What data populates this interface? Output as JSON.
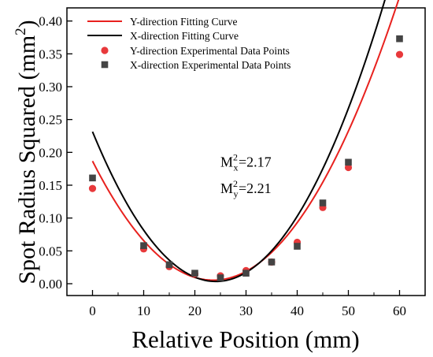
{
  "chart_data": {
    "type": "scatter",
    "xlabel": "Relative Position (mm)",
    "ylabel": {
      "main": "Spot Radius Squared (mm",
      "sup": "2",
      "close": ")"
    },
    "xlim": [
      -5,
      65
    ],
    "ylim": [
      -0.018,
      0.42
    ],
    "xticks": [
      0,
      10,
      20,
      30,
      40,
      50,
      60
    ],
    "xtick_labels": [
      "0",
      "10",
      "20",
      "30",
      "40",
      "50",
      "60"
    ],
    "yticks": [
      0.0,
      0.05,
      0.1,
      0.15,
      0.2,
      0.25,
      0.3,
      0.35,
      0.4
    ],
    "ytick_labels": [
      "0.00",
      "0.05",
      "0.10",
      "0.15",
      "0.20",
      "0.25",
      "0.30",
      "0.35",
      "0.40"
    ],
    "grid": false,
    "legend_position": "top-left",
    "series": [
      {
        "name": "Y-direction Fitting Curve",
        "kind": "line",
        "color": "#e8211e",
        "fit": {
          "a": 0.0003256,
          "x0": 23.6,
          "c": 0.0054
        }
      },
      {
        "name": "X-direction Fitting Curve",
        "kind": "line",
        "color": "#000000",
        "fit": {
          "a": 0.0003927,
          "x0": 24.1,
          "c": 0.0034
        }
      },
      {
        "name": "Y-direction Experimental Data Points",
        "kind": "scatter",
        "marker": "circle",
        "color": "#e8393b",
        "x": [
          0,
          10,
          15,
          20,
          25,
          30,
          35,
          40,
          45,
          50,
          60
        ],
        "y": [
          0.145,
          0.053,
          0.026,
          0.015,
          0.012,
          0.02,
          0.033,
          0.063,
          0.116,
          0.177,
          0.349
        ]
      },
      {
        "name": "X-direction Experimental Data Points",
        "kind": "scatter",
        "marker": "square",
        "color": "#444444",
        "x": [
          0,
          10,
          15,
          20,
          25,
          30,
          35,
          40,
          45,
          50,
          60
        ],
        "y": [
          0.161,
          0.058,
          0.029,
          0.016,
          0.009,
          0.016,
          0.033,
          0.057,
          0.123,
          0.185,
          0.373
        ]
      }
    ],
    "annotations": [
      {
        "base": "M",
        "sup": "2",
        "sub": "x",
        "value": "=2.17",
        "x": 25,
        "y": 0.178
      },
      {
        "base": "M",
        "sup": "2",
        "sub": "y",
        "value": "=2.21",
        "x": 25,
        "y": 0.138
      }
    ]
  }
}
